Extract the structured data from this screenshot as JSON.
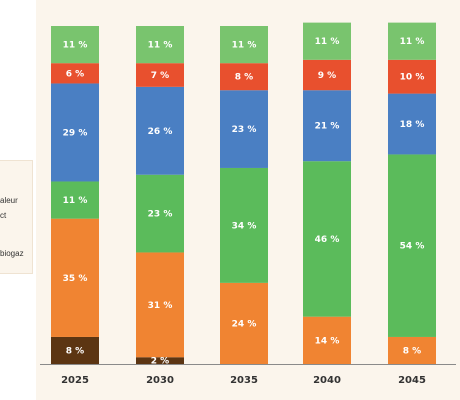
{
  "legend": {
    "fragments": [
      "aleur",
      "ct",
      "biogaz"
    ]
  },
  "colors": {
    "panel_bg": "#fbf5ec",
    "top_light_green": "#79c46e",
    "red": "#e8502e",
    "blue": "#4a7fc3",
    "green": "#5bbb5b",
    "orange": "#f08432",
    "dark_brown": "#5c3512",
    "axis_text": "#333333"
  },
  "chart_data": {
    "type": "bar",
    "stacked": true,
    "title": "",
    "xlabel": "",
    "ylabel": "",
    "categories": [
      "2025",
      "2030",
      "2035",
      "2040",
      "2045"
    ],
    "series": [
      {
        "color": "#5c3512",
        "values": [
          8,
          2,
          0,
          0,
          0
        ],
        "labels": [
          "8 %",
          "2 %",
          "",
          "",
          ""
        ]
      },
      {
        "color": "#f08432",
        "values": [
          35,
          31,
          24,
          14,
          8
        ],
        "labels": [
          "35 %",
          "31 %",
          "24 %",
          "14 %",
          "8 %"
        ]
      },
      {
        "color": "#5bbb5b",
        "values": [
          11,
          23,
          34,
          46,
          54
        ],
        "labels": [
          "11 %",
          "23 %",
          "34 %",
          "46 %",
          "54 %"
        ]
      },
      {
        "color": "#4a7fc3",
        "values": [
          29,
          26,
          23,
          21,
          18
        ],
        "labels": [
          "29 %",
          "26 %",
          "23 %",
          "21 %",
          "18 %"
        ]
      },
      {
        "color": "#e8502e",
        "values": [
          6,
          7,
          8,
          9,
          10
        ],
        "labels": [
          "6 %",
          "7 %",
          "8 %",
          "9 %",
          "10 %"
        ]
      },
      {
        "color": "#79c46e",
        "values": [
          11,
          11,
          11,
          11,
          11
        ],
        "labels": [
          "11 %",
          "11 %",
          "11 %",
          "11 %",
          "11 %"
        ]
      }
    ],
    "ylim": [
      0,
      100
    ],
    "grid": false,
    "legend_placement": "left"
  }
}
